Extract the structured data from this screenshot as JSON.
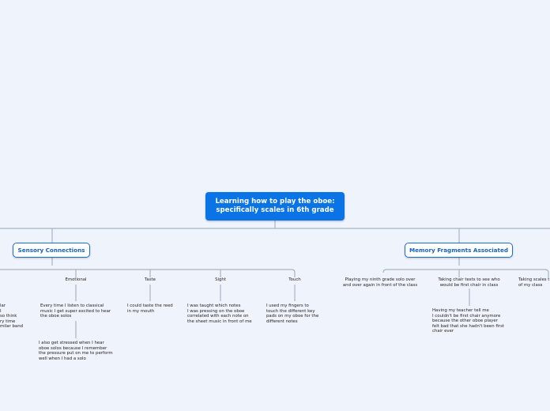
{
  "root": {
    "text": "Learning how to play the oboe:\nspecifically scales in 6th grade"
  },
  "branches": {
    "sensory": "Sensory Connections",
    "memory": "Memory Fragments Associated"
  },
  "sensory": {
    "left_fragment": "lar\nI\nso think\nry time\nmilar band",
    "emotional": {
      "label": "Emotional",
      "note1": "Every time I listen to classical\nmusic I get super excited to hear\nthe oboe solos",
      "note2": "I also get stressed when I hear\noboe solos because I remember\nthe pressure put on me to perform\nwell when I had a solo"
    },
    "taste": {
      "label": "Taste",
      "note": "I could taste the reed\nin my mouth"
    },
    "sight": {
      "label": "Sight",
      "note": "I was taught which notes\nI was pressing on the oboe\ncorrelated with each note on\nthe sheet music in front of me"
    },
    "touch": {
      "label": "Touch",
      "note": "I used my fingers to\ntouch the different key\npads on my oboe for the\ndifferent notes"
    }
  },
  "memory": {
    "playing": "Playing my ninth grade solo over\nand over again in front of the class",
    "chair": {
      "label": "Taking chair tests to see who\nwould be first chair in class",
      "note": "Having my teacher tell me\nI couldn't be first chair anymore\nbecause the other oboe player\nfelt bad that she hadn't been first\nchair ever"
    },
    "scales": "Taking scales t\nof my class"
  },
  "colors": {
    "root_fill": "#0a73e6",
    "branch_border": "#1a6fd1",
    "connector": "#a9b4c2",
    "background": "#eef3fc"
  }
}
